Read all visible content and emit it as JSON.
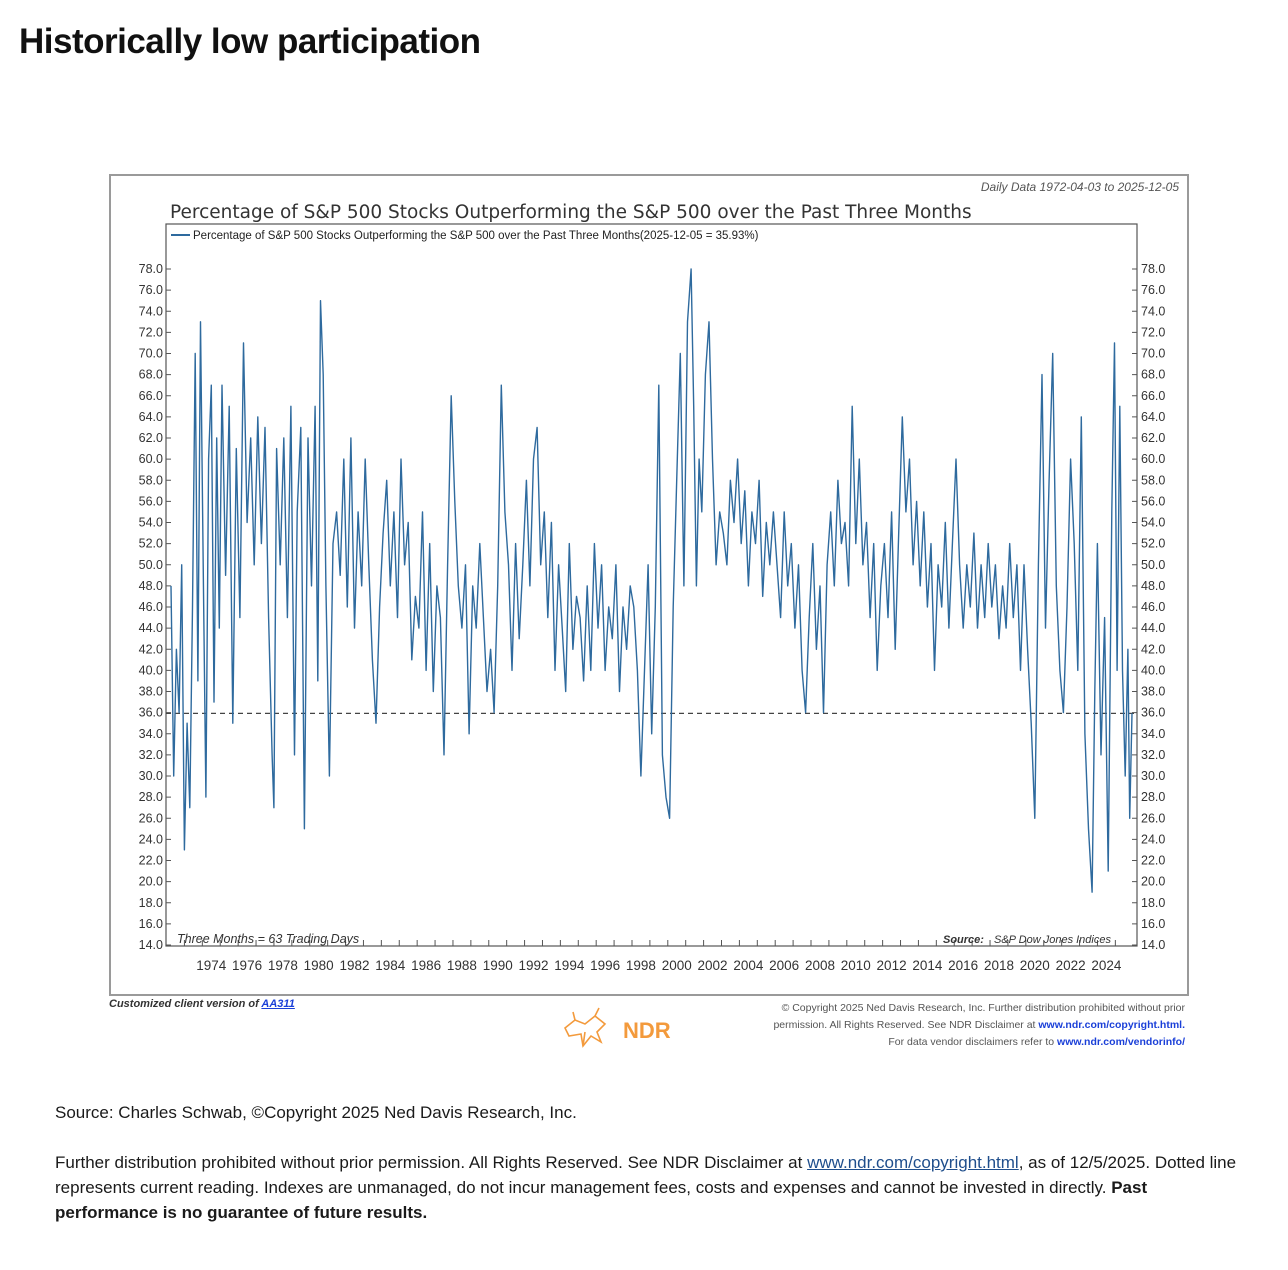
{
  "page": {
    "title": "Historically low participation"
  },
  "chart_data": {
    "type": "line",
    "title": "Percentage of S&P 500 Stocks Outperforming the S&P 500 over the Past Three Months",
    "date_range_note": "Daily Data 1972-04-03 to 2025-12-05",
    "legend_entry": "Percentage of S&P 500 Stocks Outperforming the S&P 500 over the Past Three Months(2025-12-05 = 35.93%)",
    "note_left": "Three Months = 63 Trading Days",
    "source_label": "Source:",
    "source_text": "S&P Dow Jones Indices",
    "xlim": [
      1972.25,
      2025.93
    ],
    "ylim": [
      14,
      78
    ],
    "ytick_labels": [
      "14.0",
      "16.0",
      "18.0",
      "20.0",
      "22.0",
      "24.0",
      "26.0",
      "28.0",
      "30.0",
      "32.0",
      "34.0",
      "36.0",
      "38.0",
      "40.0",
      "42.0",
      "44.0",
      "46.0",
      "48.0",
      "50.0",
      "52.0",
      "54.0",
      "56.0",
      "58.0",
      "60.0",
      "62.0",
      "64.0",
      "66.0",
      "68.0",
      "70.0",
      "72.0",
      "74.0",
      "76.0",
      "78.0"
    ],
    "xtick_labels": [
      "1974",
      "1976",
      "1978",
      "1980",
      "1982",
      "1984",
      "1986",
      "1988",
      "1990",
      "1992",
      "1994",
      "1996",
      "1998",
      "2000",
      "2002",
      "2004",
      "2006",
      "2008",
      "2010",
      "2012",
      "2014",
      "2016",
      "2018",
      "2020",
      "2022",
      "2024"
    ],
    "reference_line": 35.93,
    "series": [
      {
        "color": "#2e6a9e",
        "points": [
          [
            1972.25,
            48
          ],
          [
            1972.4,
            30
          ],
          [
            1972.55,
            42
          ],
          [
            1972.7,
            36
          ],
          [
            1972.85,
            50
          ],
          [
            1973.0,
            23
          ],
          [
            1973.15,
            35
          ],
          [
            1973.3,
            27
          ],
          [
            1973.45,
            46
          ],
          [
            1973.6,
            70
          ],
          [
            1973.75,
            39
          ],
          [
            1973.9,
            73
          ],
          [
            1974.05,
            50
          ],
          [
            1974.2,
            28
          ],
          [
            1974.35,
            60
          ],
          [
            1974.5,
            67
          ],
          [
            1974.65,
            37
          ],
          [
            1974.8,
            62
          ],
          [
            1974.95,
            44
          ],
          [
            1975.1,
            67
          ],
          [
            1975.3,
            49
          ],
          [
            1975.5,
            65
          ],
          [
            1975.7,
            35
          ],
          [
            1975.9,
            61
          ],
          [
            1976.1,
            45
          ],
          [
            1976.3,
            71
          ],
          [
            1976.5,
            54
          ],
          [
            1976.7,
            62
          ],
          [
            1976.9,
            50
          ],
          [
            1977.1,
            64
          ],
          [
            1977.3,
            52
          ],
          [
            1977.5,
            63
          ],
          [
            1977.7,
            45
          ],
          [
            1977.9,
            32
          ],
          [
            1978.0,
            27
          ],
          [
            1978.15,
            61
          ],
          [
            1978.35,
            50
          ],
          [
            1978.55,
            62
          ],
          [
            1978.75,
            45
          ],
          [
            1978.95,
            65
          ],
          [
            1979.15,
            32
          ],
          [
            1979.3,
            55
          ],
          [
            1979.5,
            63
          ],
          [
            1979.7,
            25
          ],
          [
            1979.9,
            62
          ],
          [
            1980.1,
            48
          ],
          [
            1980.3,
            65
          ],
          [
            1980.45,
            39
          ],
          [
            1980.6,
            75
          ],
          [
            1980.75,
            68
          ],
          [
            1980.9,
            48
          ],
          [
            1981.1,
            30
          ],
          [
            1981.3,
            52
          ],
          [
            1981.5,
            55
          ],
          [
            1981.7,
            49
          ],
          [
            1981.9,
            60
          ],
          [
            1982.1,
            46
          ],
          [
            1982.3,
            62
          ],
          [
            1982.5,
            44
          ],
          [
            1982.7,
            55
          ],
          [
            1982.9,
            48
          ],
          [
            1983.1,
            60
          ],
          [
            1983.3,
            50
          ],
          [
            1983.5,
            41
          ],
          [
            1983.7,
            35
          ],
          [
            1983.9,
            46
          ],
          [
            1984.1,
            53
          ],
          [
            1984.3,
            58
          ],
          [
            1984.5,
            48
          ],
          [
            1984.7,
            55
          ],
          [
            1984.9,
            45
          ],
          [
            1985.1,
            60
          ],
          [
            1985.3,
            50
          ],
          [
            1985.5,
            54
          ],
          [
            1985.7,
            41
          ],
          [
            1985.9,
            47
          ],
          [
            1986.1,
            44
          ],
          [
            1986.3,
            55
          ],
          [
            1986.5,
            40
          ],
          [
            1986.7,
            52
          ],
          [
            1986.9,
            38
          ],
          [
            1987.1,
            48
          ],
          [
            1987.3,
            45
          ],
          [
            1987.5,
            32
          ],
          [
            1987.7,
            50
          ],
          [
            1987.9,
            66
          ],
          [
            1988.1,
            56
          ],
          [
            1988.3,
            48
          ],
          [
            1988.5,
            44
          ],
          [
            1988.7,
            50
          ],
          [
            1988.9,
            34
          ],
          [
            1989.1,
            48
          ],
          [
            1989.3,
            44
          ],
          [
            1989.5,
            52
          ],
          [
            1989.7,
            45
          ],
          [
            1989.9,
            38
          ],
          [
            1990.1,
            42
          ],
          [
            1990.3,
            36
          ],
          [
            1990.5,
            48
          ],
          [
            1990.7,
            67
          ],
          [
            1990.9,
            55
          ],
          [
            1991.1,
            50
          ],
          [
            1991.3,
            40
          ],
          [
            1991.5,
            52
          ],
          [
            1991.7,
            43
          ],
          [
            1991.9,
            50
          ],
          [
            1992.1,
            58
          ],
          [
            1992.3,
            48
          ],
          [
            1992.5,
            60
          ],
          [
            1992.7,
            63
          ],
          [
            1992.9,
            50
          ],
          [
            1993.1,
            55
          ],
          [
            1993.3,
            45
          ],
          [
            1993.5,
            54
          ],
          [
            1993.7,
            40
          ],
          [
            1993.9,
            50
          ],
          [
            1994.1,
            44
          ],
          [
            1994.3,
            38
          ],
          [
            1994.5,
            52
          ],
          [
            1994.7,
            42
          ],
          [
            1994.9,
            47
          ],
          [
            1995.1,
            45
          ],
          [
            1995.3,
            39
          ],
          [
            1995.5,
            48
          ],
          [
            1995.7,
            40
          ],
          [
            1995.9,
            52
          ],
          [
            1996.1,
            44
          ],
          [
            1996.3,
            50
          ],
          [
            1996.5,
            40
          ],
          [
            1996.7,
            46
          ],
          [
            1996.9,
            43
          ],
          [
            1997.1,
            50
          ],
          [
            1997.3,
            38
          ],
          [
            1997.5,
            46
          ],
          [
            1997.7,
            42
          ],
          [
            1997.9,
            48
          ],
          [
            1998.1,
            46
          ],
          [
            1998.3,
            40
          ],
          [
            1998.5,
            30
          ],
          [
            1998.7,
            40
          ],
          [
            1998.9,
            50
          ],
          [
            1999.1,
            34
          ],
          [
            1999.3,
            46
          ],
          [
            1999.5,
            67
          ],
          [
            1999.7,
            32
          ],
          [
            1999.9,
            28
          ],
          [
            2000.1,
            26
          ],
          [
            2000.3,
            46
          ],
          [
            2000.5,
            58
          ],
          [
            2000.7,
            70
          ],
          [
            2000.9,
            48
          ],
          [
            2001.1,
            73
          ],
          [
            2001.3,
            78
          ],
          [
            2001.45,
            65
          ],
          [
            2001.6,
            48
          ],
          [
            2001.75,
            60
          ],
          [
            2001.9,
            55
          ],
          [
            2002.1,
            68
          ],
          [
            2002.3,
            73
          ],
          [
            2002.5,
            60
          ],
          [
            2002.7,
            50
          ],
          [
            2002.9,
            55
          ],
          [
            2003.1,
            53
          ],
          [
            2003.3,
            50
          ],
          [
            2003.5,
            58
          ],
          [
            2003.7,
            54
          ],
          [
            2003.9,
            60
          ],
          [
            2004.1,
            52
          ],
          [
            2004.3,
            57
          ],
          [
            2004.5,
            48
          ],
          [
            2004.7,
            55
          ],
          [
            2004.9,
            52
          ],
          [
            2005.1,
            58
          ],
          [
            2005.3,
            47
          ],
          [
            2005.5,
            54
          ],
          [
            2005.7,
            50
          ],
          [
            2005.9,
            55
          ],
          [
            2006.1,
            50
          ],
          [
            2006.3,
            45
          ],
          [
            2006.5,
            55
          ],
          [
            2006.7,
            48
          ],
          [
            2006.9,
            52
          ],
          [
            2007.1,
            44
          ],
          [
            2007.3,
            50
          ],
          [
            2007.5,
            40
          ],
          [
            2007.7,
            36
          ],
          [
            2007.9,
            45
          ],
          [
            2008.1,
            52
          ],
          [
            2008.3,
            42
          ],
          [
            2008.5,
            48
          ],
          [
            2008.7,
            36
          ],
          [
            2008.9,
            50
          ],
          [
            2009.1,
            55
          ],
          [
            2009.3,
            48
          ],
          [
            2009.5,
            58
          ],
          [
            2009.7,
            52
          ],
          [
            2009.9,
            54
          ],
          [
            2010.1,
            48
          ],
          [
            2010.3,
            65
          ],
          [
            2010.5,
            52
          ],
          [
            2010.7,
            60
          ],
          [
            2010.9,
            50
          ],
          [
            2011.1,
            54
          ],
          [
            2011.3,
            45
          ],
          [
            2011.5,
            52
          ],
          [
            2011.7,
            40
          ],
          [
            2011.9,
            48
          ],
          [
            2012.1,
            52
          ],
          [
            2012.3,
            45
          ],
          [
            2012.5,
            55
          ],
          [
            2012.7,
            42
          ],
          [
            2012.9,
            53
          ],
          [
            2013.1,
            64
          ],
          [
            2013.3,
            55
          ],
          [
            2013.5,
            60
          ],
          [
            2013.7,
            50
          ],
          [
            2013.9,
            56
          ],
          [
            2014.1,
            48
          ],
          [
            2014.3,
            55
          ],
          [
            2014.5,
            46
          ],
          [
            2014.7,
            52
          ],
          [
            2014.9,
            40
          ],
          [
            2015.1,
            50
          ],
          [
            2015.3,
            46
          ],
          [
            2015.5,
            54
          ],
          [
            2015.7,
            44
          ],
          [
            2015.9,
            52
          ],
          [
            2016.1,
            60
          ],
          [
            2016.3,
            50
          ],
          [
            2016.5,
            44
          ],
          [
            2016.7,
            50
          ],
          [
            2016.9,
            46
          ],
          [
            2017.1,
            53
          ],
          [
            2017.3,
            44
          ],
          [
            2017.5,
            50
          ],
          [
            2017.7,
            45
          ],
          [
            2017.9,
            52
          ],
          [
            2018.1,
            46
          ],
          [
            2018.3,
            50
          ],
          [
            2018.5,
            43
          ],
          [
            2018.7,
            48
          ],
          [
            2018.9,
            44
          ],
          [
            2019.1,
            52
          ],
          [
            2019.3,
            45
          ],
          [
            2019.5,
            50
          ],
          [
            2019.7,
            40
          ],
          [
            2019.9,
            50
          ],
          [
            2020.1,
            42
          ],
          [
            2020.3,
            35
          ],
          [
            2020.5,
            26
          ],
          [
            2020.7,
            50
          ],
          [
            2020.9,
            68
          ],
          [
            2021.1,
            44
          ],
          [
            2021.3,
            58
          ],
          [
            2021.5,
            70
          ],
          [
            2021.7,
            48
          ],
          [
            2021.9,
            40
          ],
          [
            2022.1,
            36
          ],
          [
            2022.3,
            46
          ],
          [
            2022.5,
            60
          ],
          [
            2022.7,
            52
          ],
          [
            2022.9,
            40
          ],
          [
            2023.1,
            64
          ],
          [
            2023.3,
            34
          ],
          [
            2023.5,
            25
          ],
          [
            2023.7,
            19
          ],
          [
            2023.85,
            38
          ],
          [
            2024.0,
            52
          ],
          [
            2024.2,
            32
          ],
          [
            2024.4,
            45
          ],
          [
            2024.6,
            21
          ],
          [
            2024.8,
            55
          ],
          [
            2024.95,
            71
          ],
          [
            2025.1,
            40
          ],
          [
            2025.25,
            65
          ],
          [
            2025.4,
            40
          ],
          [
            2025.55,
            30
          ],
          [
            2025.7,
            42
          ],
          [
            2025.8,
            26
          ],
          [
            2025.93,
            35.93
          ]
        ]
      }
    ]
  },
  "vendor": {
    "custom_note_prefix": "Customized client version of ",
    "custom_note_link": "AA311",
    "logo_text": "NDR",
    "copyright_line1": "© Copyright 2025 Ned Davis Research, Inc. Further distribution prohibited without prior",
    "copyright_line2_prefix": "permission. All Rights Reserved. See NDR Disclaimer at ",
    "copyright_line2_link": "www.ndr.com/copyright.html.",
    "copyright_line3_prefix": "For data vendor disclaimers refer to ",
    "copyright_line3_link": "www.ndr.com/vendorinfo/"
  },
  "footnotes": {
    "source": "Source: Charles Schwab, ©Copyright 2025 Ned Davis Research, Inc.",
    "p2_prefix": "Further distribution prohibited without prior permission. All Rights Reserved. See NDR Disclaimer at ",
    "p2_link": "www.ndr.com/copyright.html",
    "p2_suffix": ", as of 12/5/2025. Dotted line represents current reading. Indexes are unmanaged, do not incur management fees, costs and expenses and cannot be invested in directly. ",
    "p2_bold": "Past performance is no guarantee of future results."
  }
}
